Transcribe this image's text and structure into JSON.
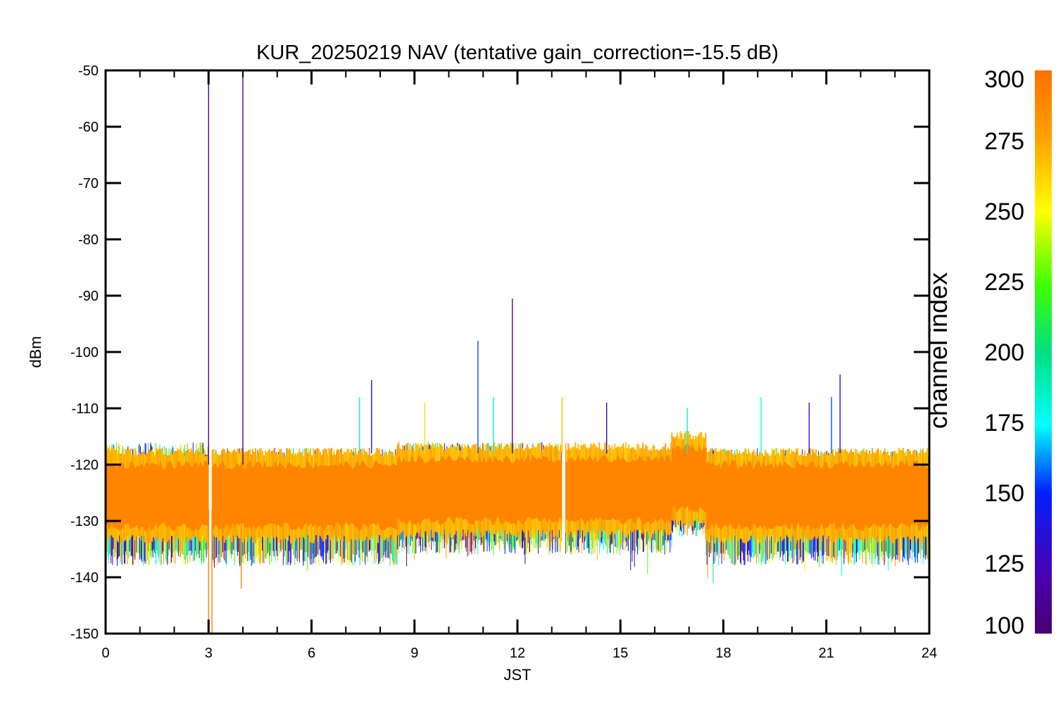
{
  "chart_data": {
    "type": "line",
    "title": "KUR_20250219 NAV (tentative gain_correction=-15.5 dB)",
    "xlabel": "JST",
    "ylabel": "dBm",
    "xlim": [
      0,
      24
    ],
    "ylim": [
      -150,
      -50
    ],
    "x_ticks": [
      "0",
      "3",
      "6",
      "9",
      "12",
      "15",
      "18",
      "21",
      "24"
    ],
    "y_ticks": [
      "-50",
      "-60",
      "-70",
      "-80",
      "-90",
      "-100",
      "-110",
      "-120",
      "-130",
      "-140",
      "-150"
    ],
    "grid": false,
    "colorbar": {
      "label": "channel index",
      "range": [
        100,
        300
      ],
      "ticks": [
        "100",
        "125",
        "150",
        "175",
        "200",
        "225",
        "250",
        "275",
        "300"
      ],
      "colormap": "rainbow"
    },
    "noise_band": {
      "segments": [
        {
          "x_start": 0.0,
          "x_end": 3.0,
          "center": -125.5,
          "core_halfwidth": 5.5,
          "outer_low": -135,
          "outer_high": -116
        },
        {
          "x_start": 3.1,
          "x_end": 8.5,
          "center": -125.5,
          "core_halfwidth": 5.5,
          "outer_low": -135,
          "outer_high": -117
        },
        {
          "x_start": 8.5,
          "x_end": 13.3,
          "center": -124.5,
          "core_halfwidth": 5.5,
          "outer_low": -133,
          "outer_high": -116
        },
        {
          "x_start": 13.4,
          "x_end": 16.5,
          "center": -124.5,
          "core_halfwidth": 5.5,
          "outer_low": -133,
          "outer_high": -117
        },
        {
          "x_start": 16.5,
          "x_end": 17.5,
          "center": -122.5,
          "core_halfwidth": 5.5,
          "outer_low": -130,
          "outer_high": -115
        },
        {
          "x_start": 17.5,
          "x_end": 24.0,
          "center": -125.5,
          "core_halfwidth": 5.5,
          "outer_low": -135,
          "outer_high": -117
        }
      ],
      "gaps": [
        3.05,
        13.35
      ],
      "dominant_channel": 290
    },
    "spikes": [
      {
        "x": 3.0,
        "y_top": -50,
        "y_bottom": -120,
        "channel": 110
      },
      {
        "x": 4.0,
        "y_top": -50,
        "y_bottom": -120,
        "channel": 110
      },
      {
        "x": 3.0,
        "y_top": -128,
        "y_bottom": -150,
        "channel": 290
      },
      {
        "x": 3.1,
        "y_top": -128,
        "y_bottom": -150,
        "channel": 290
      },
      {
        "x": 3.95,
        "y_top": -128,
        "y_bottom": -142,
        "channel": 290
      },
      {
        "x": 7.75,
        "y_top": -105,
        "y_bottom": -118,
        "channel": 140
      },
      {
        "x": 7.4,
        "y_top": -108,
        "y_bottom": -118,
        "channel": 185
      },
      {
        "x": 10.85,
        "y_top": -98,
        "y_bottom": -118,
        "channel": 155
      },
      {
        "x": 11.85,
        "y_top": -90.5,
        "y_bottom": -118,
        "channel": 120
      },
      {
        "x": 13.3,
        "y_top": -108,
        "y_bottom": -118,
        "channel": 270
      },
      {
        "x": 9.3,
        "y_top": -109,
        "y_bottom": -118,
        "channel": 260
      },
      {
        "x": 11.3,
        "y_top": -108,
        "y_bottom": -118,
        "channel": 180
      },
      {
        "x": 14.6,
        "y_top": -109,
        "y_bottom": -118,
        "channel": 130
      },
      {
        "x": 19.1,
        "y_top": -108,
        "y_bottom": -118,
        "channel": 175
      },
      {
        "x": 20.5,
        "y_top": -109,
        "y_bottom": -118,
        "channel": 130
      },
      {
        "x": 21.4,
        "y_top": -104,
        "y_bottom": -118,
        "channel": 140
      },
      {
        "x": 21.15,
        "y_top": -108,
        "y_bottom": -118,
        "channel": 155
      },
      {
        "x": 16.95,
        "y_top": -110,
        "y_bottom": -118,
        "channel": 180
      }
    ]
  }
}
